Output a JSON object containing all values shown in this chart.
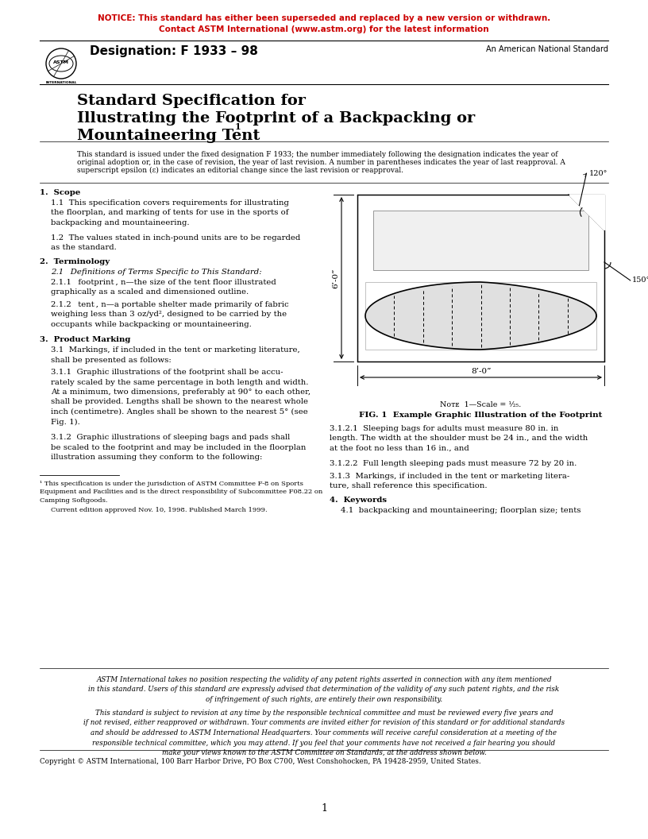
{
  "notice_line1": "NOTICE: This standard has either been superseded and replaced by a new version or withdrawn.",
  "notice_line2": "Contact ASTM International (www.astm.org) for the latest information",
  "notice_color": "#cc0000",
  "designation": "Designation: F 1933 – 98",
  "american_national": "An American National Standard",
  "title_line1": "Standard Specification for",
  "title_line2": "Illustrating the Footprint of a Backpacking or",
  "title_line3": "Mountaineering Tent",
  "title_superscript": "1",
  "fig_note": "NOTE  1—Scale = ¹⁄₂₅.",
  "fig_caption": "FIG. 1  Example Graphic Illustration of the Footprint",
  "dim_width": "8’-0”",
  "dim_height": "6’-0”",
  "dim_angle1": "120°",
  "dim_angle2": "150°",
  "copyright": "Copyright © ASTM International, 100 Barr Harbor Drive, PO Box C700, West Conshohocken, PA 19428-2959, United States.",
  "page_num": "1"
}
